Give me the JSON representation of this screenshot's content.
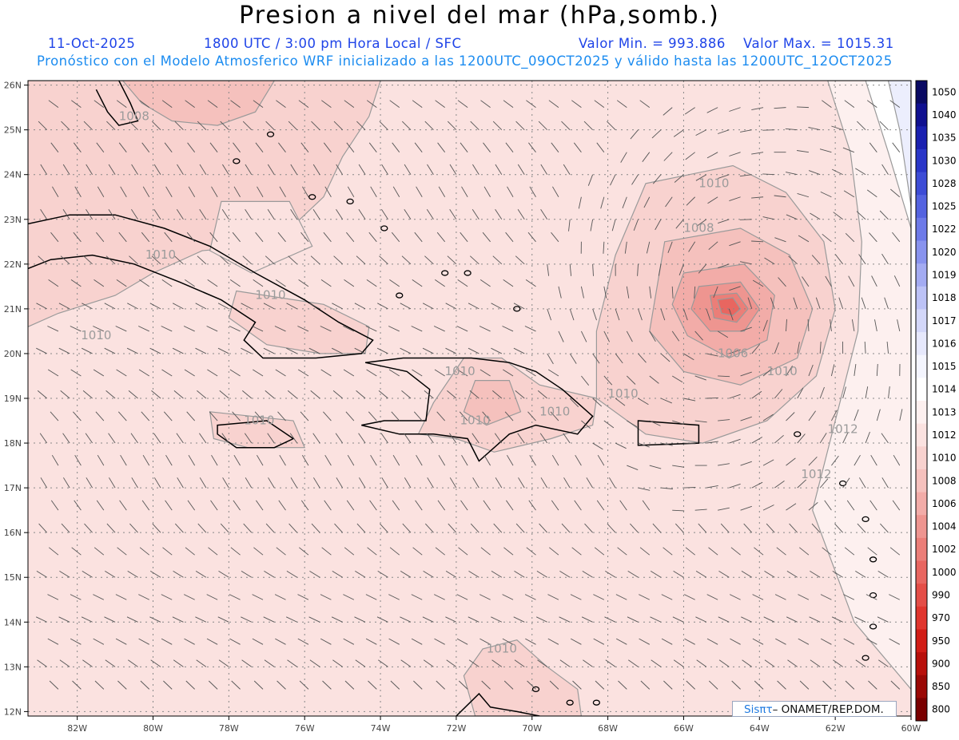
{
  "title": "Presion a nivel del mar (hPa,somb.)",
  "header": {
    "date": "11-Oct-2025",
    "time": "1800 UTC / 3:00 pm Hora Local / SFC",
    "min": "Valor Min. = 993.886",
    "max": "Valor Max. = 1015.31",
    "model_line": "Pronóstico con el Modelo Atmosferico WRF inicializado a las 1200UTC_09OCT2025 y válido hasta las  1200UTC_12OCT2025"
  },
  "axes": {
    "lat_labels": [
      "26N",
      "25N",
      "24N",
      "23N",
      "22N",
      "21N",
      "20N",
      "19N",
      "18N",
      "17N",
      "16N",
      "15N",
      "14N",
      "13N",
      "12N"
    ],
    "lon_labels": [
      "82W",
      "80W",
      "78W",
      "76W",
      "74W",
      "72W",
      "70W",
      "68W",
      "66W",
      "64W",
      "62W",
      "60W"
    ]
  },
  "contour_labels": [
    {
      "text": "1008",
      "lon": -80.5,
      "lat": 25.3
    },
    {
      "text": "1010",
      "lon": -79.8,
      "lat": 22.2
    },
    {
      "text": "1010",
      "lon": -76.9,
      "lat": 21.3
    },
    {
      "text": "1010",
      "lon": -81.5,
      "lat": 20.4
    },
    {
      "text": "1010",
      "lon": -71.9,
      "lat": 19.6
    },
    {
      "text": "1010",
      "lon": -71.5,
      "lat": 18.5
    },
    {
      "text": "1010",
      "lon": -69.4,
      "lat": 18.7
    },
    {
      "text": "1010",
      "lon": -67.6,
      "lat": 19.1
    },
    {
      "text": "1010",
      "lon": -77.2,
      "lat": 18.5
    },
    {
      "text": "1010",
      "lon": -65.2,
      "lat": 23.8
    },
    {
      "text": "1008",
      "lon": -65.6,
      "lat": 22.8
    },
    {
      "text": "1006",
      "lon": -64.7,
      "lat": 20.0
    },
    {
      "text": "1010",
      "lon": -63.4,
      "lat": 19.6
    },
    {
      "text": "1012",
      "lon": -61.8,
      "lat": 18.3
    },
    {
      "text": "1012",
      "lon": -62.5,
      "lat": 17.3
    },
    {
      "text": "1010",
      "lon": -70.8,
      "lat": 13.4
    }
  ],
  "colorbar": {
    "levels": [
      "1050",
      "1040",
      "1035",
      "1030",
      "1028",
      "1025",
      "1022",
      "1020",
      "1019",
      "1018",
      "1017",
      "1016",
      "1015",
      "1014",
      "1013",
      "1012",
      "1010",
      "1008",
      "1006",
      "1004",
      "1002",
      "1000",
      "990",
      "970",
      "950",
      "900",
      "850",
      "800"
    ],
    "colors": [
      "#0a0a63",
      "#101090",
      "#1a20b0",
      "#2a36c8",
      "#3d4cd6",
      "#5463e0",
      "#6d7ae8",
      "#8893ee",
      "#a3abf2",
      "#bcc2f6",
      "#d3d7f9",
      "#e6e8fc",
      "#f4f5fe",
      "#ffffff",
      "#fdf0ef",
      "#fbe2e0",
      "#f8d2cf",
      "#f5c1bd",
      "#f2aca8",
      "#ee9590",
      "#eb7e78",
      "#e86660",
      "#e44e47",
      "#e0362e",
      "#d11d16",
      "#b8100b",
      "#9a0805",
      "#7a0000"
    ]
  },
  "credit": {
    "brand": "Sisπτ",
    "org": "– ONAMET/REP.DOM."
  }
}
